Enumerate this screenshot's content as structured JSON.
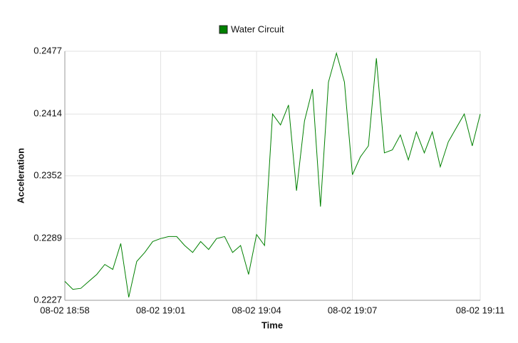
{
  "chart_data": {
    "type": "line",
    "legend": "top",
    "grid": true,
    "x_label": "Time",
    "y_label": "Acceleration",
    "x": [
      "08-02 18:58:00",
      "08-02 18:58:15",
      "08-02 18:58:30",
      "08-02 18:58:45",
      "08-02 18:59:00",
      "08-02 18:59:15",
      "08-02 18:59:30",
      "08-02 18:59:45",
      "08-02 19:00:00",
      "08-02 19:00:15",
      "08-02 19:00:30",
      "08-02 19:00:45",
      "08-02 19:01:00",
      "08-02 19:01:15",
      "08-02 19:01:30",
      "08-02 19:01:45",
      "08-02 19:02:00",
      "08-02 19:02:15",
      "08-02 19:02:30",
      "08-02 19:02:45",
      "08-02 19:03:00",
      "08-02 19:03:15",
      "08-02 19:03:30",
      "08-02 19:03:45",
      "08-02 19:04:00",
      "08-02 19:04:15",
      "08-02 19:04:30",
      "08-02 19:04:45",
      "08-02 19:05:00",
      "08-02 19:05:15",
      "08-02 19:05:30",
      "08-02 19:05:45",
      "08-02 19:06:00",
      "08-02 19:06:15",
      "08-02 19:06:30",
      "08-02 19:06:45",
      "08-02 19:07:00",
      "08-02 19:07:15",
      "08-02 19:07:30",
      "08-02 19:07:45",
      "08-02 19:08:00",
      "08-02 19:08:15",
      "08-02 19:08:30",
      "08-02 19:08:45",
      "08-02 19:09:00",
      "08-02 19:09:15",
      "08-02 19:09:30",
      "08-02 19:09:45",
      "08-02 19:10:00",
      "08-02 19:10:15",
      "08-02 19:10:30",
      "08-02 19:10:45",
      "08-02 19:11:00"
    ],
    "series": [
      {
        "name": "Water Circuit",
        "color": "#008000",
        "values": [
          0.2246,
          0.2238,
          0.2239,
          0.2246,
          0.2253,
          0.2263,
          0.2258,
          0.2284,
          0.223,
          0.2266,
          0.2275,
          0.2286,
          0.2289,
          0.2291,
          0.2291,
          0.2282,
          0.2275,
          0.2286,
          0.2278,
          0.2289,
          0.2291,
          0.2275,
          0.2282,
          0.2253,
          0.2293,
          0.2282,
          0.2414,
          0.2403,
          0.2423,
          0.2337,
          0.2407,
          0.2439,
          0.2321,
          0.2446,
          0.2475,
          0.2446,
          0.2353,
          0.2371,
          0.2382,
          0.247,
          0.2375,
          0.2378,
          0.2393,
          0.2368,
          0.2396,
          0.2375,
          0.2396,
          0.2361,
          0.2386,
          0.24,
          0.2414,
          0.2382,
          0.2414
        ]
      }
    ],
    "xlim": [
      "08-02 18:58",
      "08-02 19:11"
    ],
    "xticks": [
      "08-02 18:58",
      "08-02 19:01",
      "08-02 19:04",
      "08-02 19:07",
      "08-02 19:11"
    ],
    "ylim": [
      0.2227,
      0.2477
    ],
    "yticks": [
      0.2227,
      0.2289,
      0.2352,
      0.2414,
      0.2477
    ]
  }
}
